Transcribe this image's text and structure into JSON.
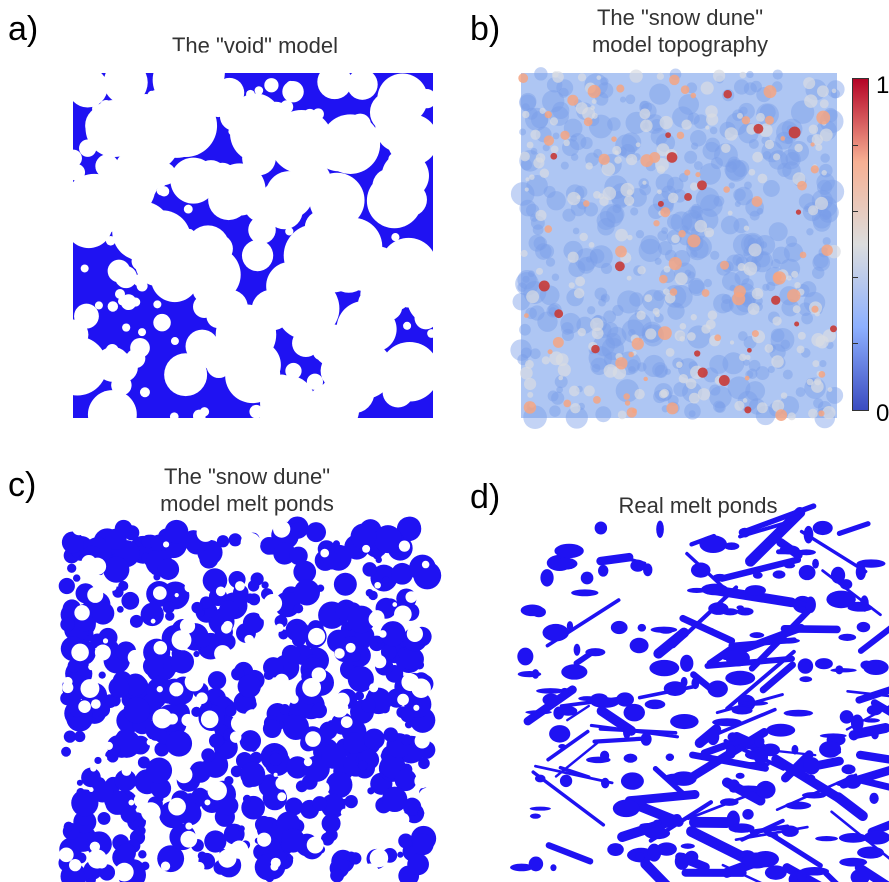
{
  "panels": {
    "a": {
      "letter": "a)",
      "title": "The \"void\" model",
      "pond_color": "#1f12f2"
    },
    "b": {
      "letter": "b)",
      "title": "The \"snow dune\"\nmodel topography"
    },
    "c": {
      "letter": "c)",
      "title": "The \"snow dune\"\nmodel melt ponds",
      "pond_color": "#1f12f2"
    },
    "d": {
      "letter": "d)",
      "title": "Real melt ponds",
      "pond_color": "#1f12f2"
    }
  },
  "colorbar": {
    "max_label": "1",
    "min_label": "0",
    "colors": [
      "#b40426",
      "#f7b093",
      "#dcdddd",
      "#8db0fe",
      "#3b4cc0"
    ]
  }
}
